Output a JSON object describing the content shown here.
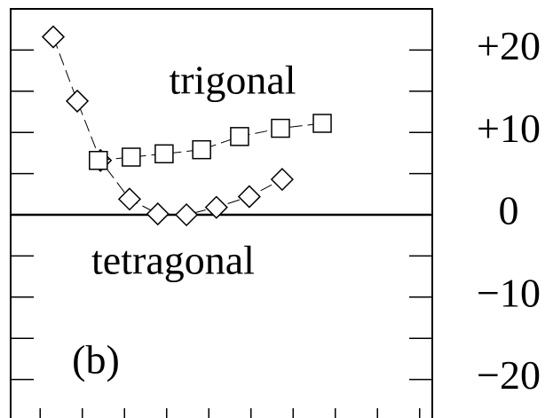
{
  "chart_data": {
    "type": "line",
    "annotations": [
      "trigonal",
      "tetragonal",
      "(b)"
    ],
    "series": [
      {
        "name": null,
        "marker": "diamond",
        "color": "#000000",
        "x": [
          0.31,
          0.88,
          1.43,
          2.12,
          2.79,
          3.47,
          4.18,
          4.96,
          5.74
        ],
        "values": [
          21.6,
          13.8,
          6.6,
          1.9,
          0.1,
          0,
          0.9,
          2.2,
          4.3
        ]
      },
      {
        "name": null,
        "marker": "square",
        "color": "#000000",
        "x": [
          1.38,
          2.16,
          2.94,
          3.83,
          4.73,
          5.7,
          6.69
        ],
        "values": [
          6.6,
          7.0,
          7.4,
          7.9,
          9.5,
          10.5,
          11.1
        ]
      }
    ],
    "xlim": [
      -0.7,
      9.3
    ],
    "xticks": [
      0,
      1,
      2,
      3,
      4,
      5,
      6,
      7,
      8,
      9
    ],
    "ylim": [
      -25,
      25
    ],
    "yticks": [
      {
        "value": 20,
        "label": "+20"
      },
      {
        "value": 10,
        "label": "+10"
      },
      0,
      {
        "value": -10,
        "label": "−10"
      },
      {
        "value": -20,
        "label": "−20"
      }
    ],
    "yminorticks": [
      15,
      5,
      -5,
      -15
    ],
    "zero_line": 0
  }
}
